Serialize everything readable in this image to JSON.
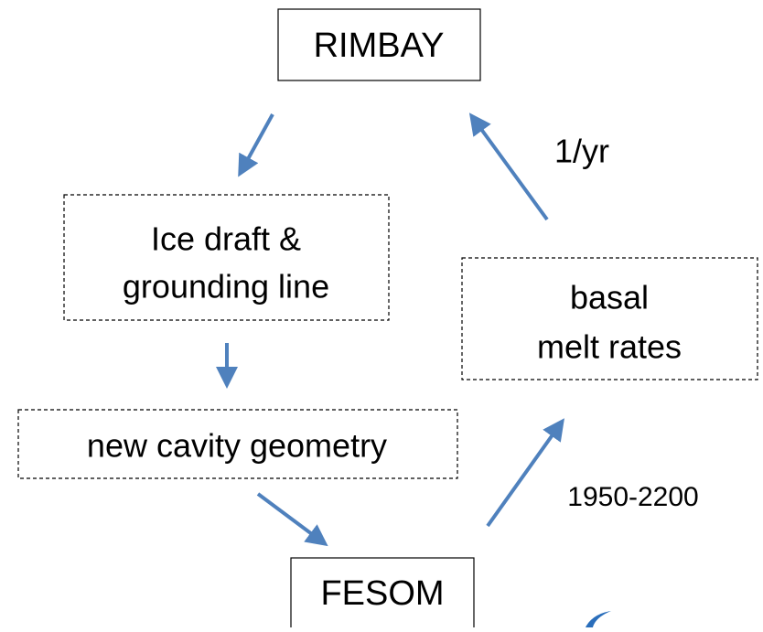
{
  "nodes": [
    {
      "lines": [
        "RIMBAY"
      ]
    },
    {
      "lines": [
        "Ice draft &",
        "grounding line"
      ]
    },
    {
      "lines": [
        "basal",
        "melt rates"
      ]
    },
    {
      "lines": [
        "new cavity geometry"
      ]
    },
    {
      "lines": [
        "FESOM"
      ]
    }
  ],
  "annotations": [
    "1/yr",
    "1950-2200"
  ]
}
